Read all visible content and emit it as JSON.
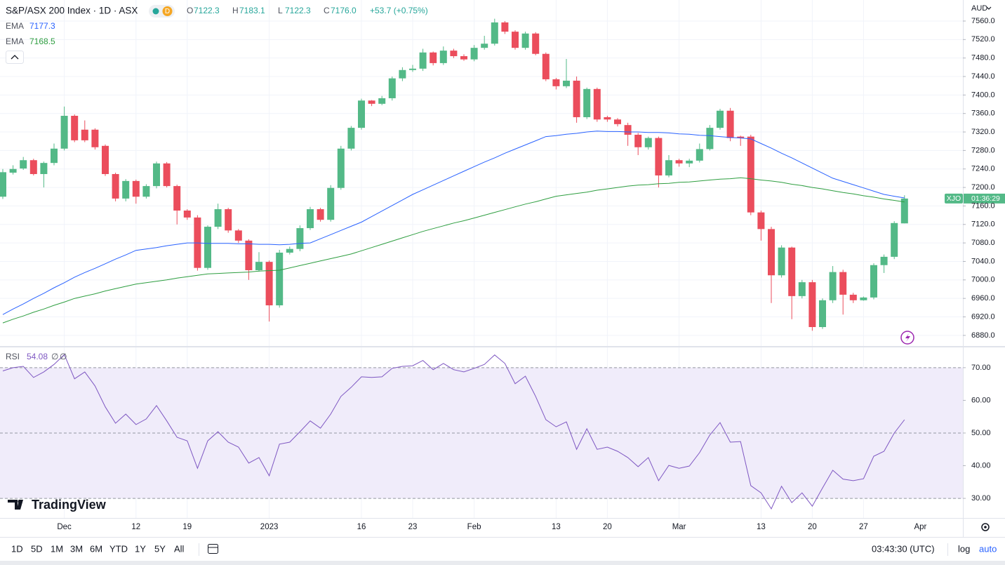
{
  "header": {
    "title": "S&P/ASX 200 Index · 1D · ASX",
    "badge": "D",
    "ohlc": [
      {
        "k": "O",
        "v": "7122.3"
      },
      {
        "k": "H",
        "v": "7183.1"
      },
      {
        "k": "L",
        "v": "7122.3"
      },
      {
        "k": "C",
        "v": "7176.0"
      }
    ],
    "change": "+53.7 (+0.75%)"
  },
  "toolbar": {
    "ranges": [
      "1D",
      "5D",
      "1M",
      "3M",
      "6M",
      "YTD",
      "1Y",
      "5Y",
      "All"
    ],
    "time": "03:43:30 (UTC)",
    "log": "log",
    "auto": "auto"
  },
  "logo": "TradingView",
  "chart_data": [
    {
      "type": "candlestick",
      "currency": "AUD",
      "symbol_tag": "XJO",
      "countdown": "01:36:29",
      "next_label": "Apr",
      "categories": [
        null,
        null,
        null,
        null,
        null,
        null,
        "Dec",
        null,
        null,
        null,
        null,
        null,
        null,
        "12",
        null,
        null,
        null,
        null,
        "19",
        null,
        null,
        null,
        null,
        null,
        null,
        null,
        "2023",
        null,
        null,
        null,
        null,
        null,
        null,
        null,
        null,
        "16",
        null,
        null,
        null,
        null,
        "23",
        null,
        null,
        null,
        null,
        null,
        "Feb",
        null,
        null,
        null,
        null,
        null,
        null,
        null,
        "13",
        null,
        null,
        null,
        null,
        "20",
        null,
        null,
        null,
        null,
        null,
        null,
        "Mar",
        null,
        null,
        null,
        null,
        null,
        null,
        null,
        "13",
        null,
        null,
        null,
        null,
        "20",
        null,
        null,
        null,
        null,
        "27",
        null,
        null,
        null,
        null
      ],
      "open": [
        7180,
        7232,
        7241,
        7259,
        7229,
        7253,
        7284,
        7355,
        7325,
        7325,
        7290,
        7229,
        7176,
        7214,
        7180,
        7203,
        7252,
        7203,
        7150,
        7135,
        7026,
        7115,
        7153,
        7107,
        7085,
        7021,
        7039,
        6945,
        7059,
        7067,
        7112,
        7153,
        7130,
        7199,
        7284,
        7329,
        7388,
        7381,
        7393,
        7436,
        7454,
        7457,
        7492,
        7469,
        7496,
        7484,
        7477,
        7502,
        7511,
        7557,
        7537,
        7502,
        7533,
        7489,
        7434,
        7419,
        7431,
        7352,
        7413,
        7352,
        7347,
        7335,
        7314,
        7287,
        7307,
        7226,
        7259,
        7252,
        7258,
        7283,
        7329,
        7366,
        7310,
        7310,
        7146,
        7110,
        7010,
        7070,
        6965,
        6995,
        6898,
        6956,
        7017,
        6968,
        6956,
        6962,
        7032,
        7050,
        7122.3
      ],
      "high": [
        7240,
        7248,
        7266,
        7262,
        7256,
        7295,
        7375,
        7358,
        7345,
        7328,
        7293,
        7232,
        7218,
        7217,
        7207,
        7256,
        7255,
        7206,
        7153,
        7140,
        7118,
        7165,
        7156,
        7110,
        7088,
        7060,
        7042,
        7065,
        7072,
        7118,
        7158,
        7156,
        7205,
        7290,
        7333,
        7392,
        7389,
        7398,
        7440,
        7460,
        7465,
        7500,
        7494,
        7505,
        7500,
        7488,
        7508,
        7528,
        7565,
        7560,
        7540,
        7537,
        7536,
        7492,
        7437,
        7478,
        7440,
        7416,
        7416,
        7355,
        7350,
        7340,
        7318,
        7310,
        7310,
        7270,
        7262,
        7262,
        7295,
        7335,
        7370,
        7372,
        7312,
        7314,
        7150,
        7115,
        7075,
        7072,
        7000,
        7000,
        6960,
        7030,
        7022,
        6972,
        6964,
        7036,
        7055,
        7127,
        7183.1
      ],
      "low": [
        7175,
        7228,
        7238,
        7226,
        7200,
        7248,
        7280,
        7298,
        7298,
        7282,
        7225,
        7170,
        7170,
        7165,
        7176,
        7198,
        7200,
        7120,
        7130,
        7020,
        7022,
        7110,
        7102,
        7080,
        7000,
        7018,
        6910,
        6940,
        7055,
        7062,
        7108,
        7126,
        7126,
        7195,
        7280,
        7325,
        7376,
        7378,
        7388,
        7430,
        7450,
        7452,
        7464,
        7465,
        7480,
        7474,
        7473,
        7498,
        7507,
        7532,
        7498,
        7498,
        7486,
        7430,
        7412,
        7415,
        7340,
        7348,
        7342,
        7342,
        7332,
        7290,
        7270,
        7282,
        7200,
        7222,
        7245,
        7244,
        7254,
        7280,
        7325,
        7300,
        7290,
        7140,
        7085,
        6950,
        7005,
        6915,
        6960,
        6890,
        6894,
        6950,
        6925,
        6950,
        6955,
        6958,
        7015,
        7045,
        7122.3
      ],
      "close": [
        7233,
        7240,
        7259,
        7229,
        7253,
        7284,
        7355,
        7302,
        7302,
        7287,
        7229,
        7176,
        7214,
        7180,
        7203,
        7252,
        7203,
        7150,
        7135,
        7026,
        7115,
        7153,
        7107,
        7085,
        7021,
        7039,
        6945,
        7059,
        7067,
        7112,
        7153,
        7130,
        7199,
        7284,
        7329,
        7388,
        7381,
        7393,
        7436,
        7454,
        7457,
        7492,
        7469,
        7496,
        7484,
        7477,
        7502,
        7511,
        7557,
        7537,
        7502,
        7533,
        7489,
        7434,
        7419,
        7431,
        7352,
        7413,
        7347,
        7347,
        7337,
        7314,
        7287,
        7307,
        7226,
        7259,
        7252,
        7258,
        7283,
        7329,
        7366,
        7307,
        7307,
        7146,
        7110,
        7010,
        7070,
        6965,
        6995,
        6898,
        6956,
        7017,
        6968,
        6956,
        6962,
        7032,
        7050,
        7123,
        7176.0
      ],
      "up_color": "#53b987",
      "down_color": "#eb4d5c",
      "series": [
        {
          "name": "EMA",
          "color": "#2962ff",
          "values": [
            6925,
            6937,
            6948,
            6960,
            6971,
            6983,
            6994,
            7006,
            7016,
            7025,
            7035,
            7045,
            7054,
            7064,
            7067,
            7070,
            7074,
            7077,
            7080,
            7080,
            7079,
            7079,
            7079,
            7078,
            7078,
            7077,
            7077,
            7076,
            7077,
            7079,
            7080,
            7089,
            7098,
            7107,
            7116,
            7125,
            7137,
            7149,
            7161,
            7173,
            7185,
            7195,
            7205,
            7215,
            7225,
            7235,
            7245,
            7255,
            7264,
            7274,
            7283,
            7292,
            7301,
            7310,
            7312,
            7315,
            7317,
            7320,
            7322,
            7321,
            7321,
            7320,
            7320,
            7319,
            7319,
            7318,
            7316,
            7315,
            7313,
            7312,
            7310,
            7308,
            7307,
            7305,
            7295,
            7285,
            7274,
            7264,
            7253,
            7242,
            7231,
            7220,
            7213,
            7206,
            7199,
            7192,
            7185,
            7181,
            7177.3
          ]
        },
        {
          "name": "EMA",
          "color": "#2e9e40",
          "values": [
            6907,
            6915,
            6922,
            6930,
            6937,
            6945,
            6952,
            6960,
            6965,
            6970,
            6976,
            6981,
            6986,
            6991,
            6994,
            6997,
            7000,
            7004,
            7007,
            7010,
            7013,
            7014,
            7015,
            7016,
            7017,
            7019,
            7020,
            7021,
            7026,
            7031,
            7036,
            7041,
            7046,
            7051,
            7056,
            7063,
            7070,
            7077,
            7084,
            7091,
            7098,
            7105,
            7111,
            7117,
            7123,
            7128,
            7134,
            7140,
            7146,
            7152,
            7158,
            7164,
            7169,
            7175,
            7181,
            7184,
            7187,
            7190,
            7194,
            7197,
            7200,
            7203,
            7205,
            7206,
            7208,
            7209,
            7211,
            7212,
            7214,
            7216,
            7218,
            7219,
            7221,
            7219,
            7216,
            7214,
            7211,
            7207,
            7204,
            7200,
            7197,
            7193,
            7189,
            7186,
            7182,
            7179,
            7175,
            7172,
            7168.5
          ]
        }
      ],
      "ylim": [
        6857,
        7605.5
      ],
      "yticks": [
        {
          "value": 7560,
          "label": "7560.0"
        },
        {
          "value": 7520,
          "label": "7520.0"
        },
        {
          "value": 7480,
          "label": "7480.0"
        },
        {
          "value": 7440,
          "label": "7440.0"
        },
        {
          "value": 7400,
          "label": "7400.0"
        },
        {
          "value": 7360,
          "label": "7360.0"
        },
        {
          "value": 7320,
          "label": "7320.0"
        },
        {
          "value": 7280,
          "label": "7280.0"
        },
        {
          "value": 7240,
          "label": "7240.0"
        },
        {
          "value": 7200,
          "label": "7200.0"
        },
        {
          "value": 7160,
          "label": "7160.0"
        },
        {
          "value": 7120,
          "label": "7120.0"
        },
        {
          "value": 7080,
          "label": "7080.0"
        },
        {
          "value": 7040,
          "label": "7040.0"
        },
        {
          "value": 7000,
          "label": "7000.0"
        },
        {
          "value": 6960,
          "label": "6960.0"
        },
        {
          "value": 6920,
          "label": "6920.0"
        },
        {
          "value": 6880,
          "label": "6880.0"
        }
      ],
      "grid": true
    },
    {
      "type": "line",
      "series": [
        {
          "name": "RSI",
          "color": "#7e57c2",
          "values": [
            69,
            70,
            70.4,
            67,
            68.7,
            71,
            74,
            66.6,
            68.7,
            64.4,
            58,
            53,
            55.8,
            52.6,
            54.3,
            58.4,
            53.7,
            48.7,
            47.6,
            39.2,
            47.6,
            50.4,
            47.2,
            45.7,
            40.8,
            42.5,
            36.9,
            46.6,
            47.2,
            50.4,
            53.7,
            51.5,
            55.8,
            61.2,
            64,
            67.2,
            67,
            67.2,
            69.8,
            70.4,
            70.6,
            72.2,
            69.4,
            71.3,
            69.4,
            68.7,
            69.8,
            71,
            73.9,
            71.3,
            65.1,
            67.4,
            61.2,
            54.1,
            51.9,
            53.4,
            45,
            51.3,
            45,
            45.7,
            44.4,
            42.5,
            39.7,
            42.5,
            35.4,
            40.1,
            39.2,
            39.9,
            44,
            49.4,
            53.2,
            47.2,
            47.4,
            33.9,
            31.7,
            26.8,
            33.7,
            28.7,
            31.7,
            27.6,
            33.2,
            38.6,
            35.9,
            35.4,
            36,
            42.9,
            44.4,
            50,
            54.08
          ]
        }
      ],
      "legend_icons": [
        "∅",
        "∅"
      ],
      "bands": [
        30,
        50,
        70
      ],
      "band_fill": "#f0ecfa",
      "ylim": [
        24,
        76.2
      ],
      "yticks": [
        {
          "value": 70,
          "label": "70.00"
        },
        {
          "value": 60,
          "label": "60.00"
        },
        {
          "value": 50,
          "label": "50.00"
        },
        {
          "value": 40,
          "label": "40.00"
        },
        {
          "value": 30,
          "label": "30.00"
        }
      ],
      "grid": true
    }
  ]
}
